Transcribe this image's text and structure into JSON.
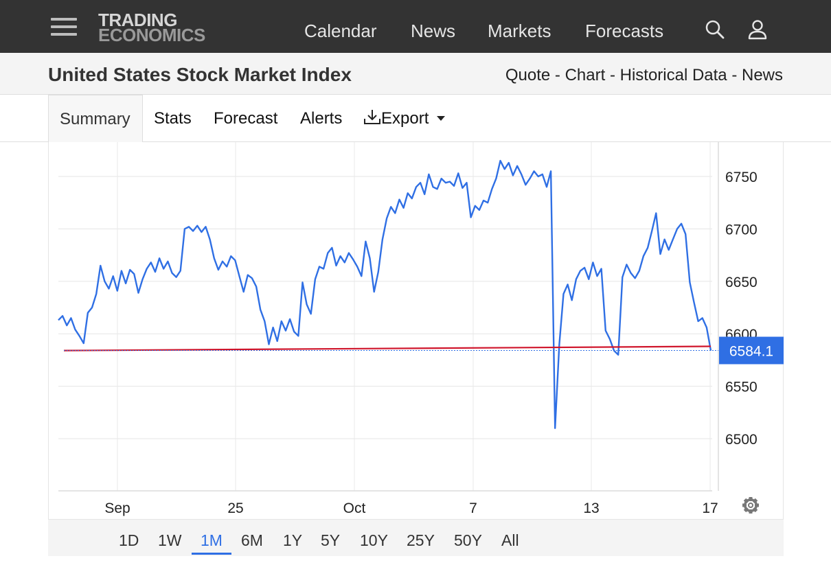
{
  "nav": {
    "logo_line1": "TRADING",
    "logo_line2": "ECONOMICS",
    "links": [
      "Calendar",
      "News",
      "Markets",
      "Forecasts"
    ],
    "icons": [
      "menu-icon",
      "search-icon",
      "user-icon"
    ]
  },
  "header": {
    "title": "United States Stock Market Index",
    "quicklinks": [
      "Quote",
      "Chart",
      "Historical Data",
      "News"
    ],
    "separator": " - "
  },
  "tabs": {
    "items": [
      "Summary",
      "Stats",
      "Forecast",
      "Alerts",
      "Export"
    ],
    "active": "Summary",
    "export_icon": "download-icon",
    "caret_icon": "caret-down-icon"
  },
  "range": {
    "items": [
      "1D",
      "1W",
      "1M",
      "6M",
      "1Y",
      "5Y",
      "10Y",
      "25Y",
      "50Y",
      "All"
    ],
    "active": "1M"
  },
  "settings_icon": "gear-icon",
  "colors": {
    "line": "#2f6fe4",
    "trend": "#d0162c",
    "price_badge": "#2f6fe4",
    "nav_bg": "#333333"
  },
  "chart_data": {
    "type": "line",
    "x_tick_labels": [
      "Sep",
      "25",
      "Oct",
      "7",
      "13",
      "17"
    ],
    "y_tick_labels": [
      "6500",
      "6550",
      "6600",
      "6650",
      "6700",
      "6750"
    ],
    "ylim": [
      6450,
      6780
    ],
    "last_price_label": "6584.1",
    "last_price": 6584.1,
    "trend_line": {
      "start": 6584,
      "end": 6588
    },
    "grid": true,
    "series": [
      {
        "values": [
          6613,
          6617,
          6608,
          6615,
          6604,
          6598,
          6591,
          6620,
          6625,
          6638,
          6665,
          6650,
          6643,
          6655,
          6641,
          6660,
          6648,
          6661,
          6657,
          6639,
          6652,
          6662,
          6668,
          6659,
          6672,
          6662,
          6669,
          6658,
          6654,
          6660,
          6700,
          6702,
          6698,
          6703,
          6697,
          6702,
          6690,
          6672,
          6661,
          6669,
          6664,
          6674,
          6670,
          6655,
          6640,
          6656,
          6653,
          6645,
          6623,
          6612,
          6590,
          6606,
          6593,
          6612,
          6603,
          6614,
          6602,
          6598,
          6649,
          6628,
          6619,
          6652,
          6664,
          6662,
          6677,
          6682,
          6665,
          6674,
          6668,
          6677,
          6671,
          6664,
          6655,
          6688,
          6672,
          6640,
          6659,
          6690,
          6710,
          6721,
          6715,
          6728,
          6720,
          6734,
          6729,
          6740,
          6744,
          6733,
          6752,
          6740,
          6738,
          6748,
          6744,
          6745,
          6741,
          6753,
          6739,
          6744,
          6711,
          6722,
          6718,
          6727,
          6725,
          6738,
          6748,
          6765,
          6757,
          6763,
          6751,
          6760,
          6752,
          6742,
          6748,
          6755,
          6750,
          6752,
          6740,
          6755,
          6510,
          6590,
          6638,
          6647,
          6632,
          6652,
          6660,
          6663,
          6652,
          6668,
          6655,
          6662,
          6603,
          6595,
          6584,
          6580,
          6654,
          6666,
          6658,
          6653,
          6660,
          6674,
          6682,
          6698,
          6715,
          6676,
          6690,
          6680,
          6690,
          6700,
          6705,
          6695,
          6649,
          6630,
          6612,
          6615,
          6606,
          6584
        ]
      }
    ]
  }
}
